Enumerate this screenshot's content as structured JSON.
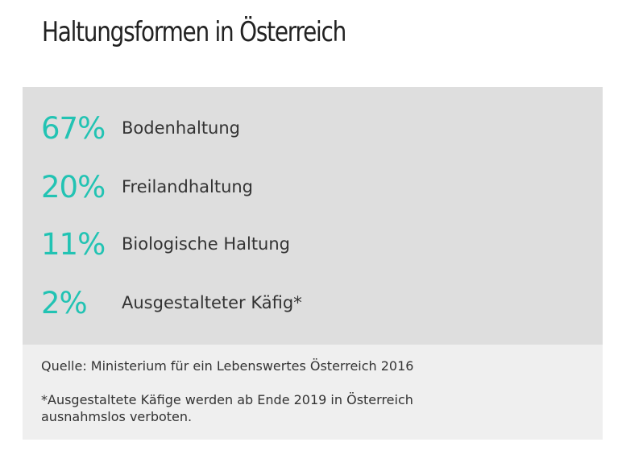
{
  "title": "Haltungsformen in Österreich",
  "stats": [
    {
      "value": "67%",
      "label": "Bodenhaltung"
    },
    {
      "value": "20%",
      "label": "Freilandhaltung"
    },
    {
      "value": "11%",
      "label": "Biologische Haltung"
    },
    {
      "value": "2%",
      "label": "Ausgestalteter Käfig*"
    }
  ],
  "footer": {
    "source": "Quelle: Ministerium für ein Lebenswertes Österreich 2016",
    "footnote_line1": "*Ausgestaltete Käfige werden ab Ende 2019 in Österreich",
    "footnote_line2": "ausnahmslos verboten."
  },
  "colors": {
    "accent": "#22c3b3",
    "panel": "#dedede",
    "footer_panel": "#efefef",
    "text": "#333333"
  }
}
